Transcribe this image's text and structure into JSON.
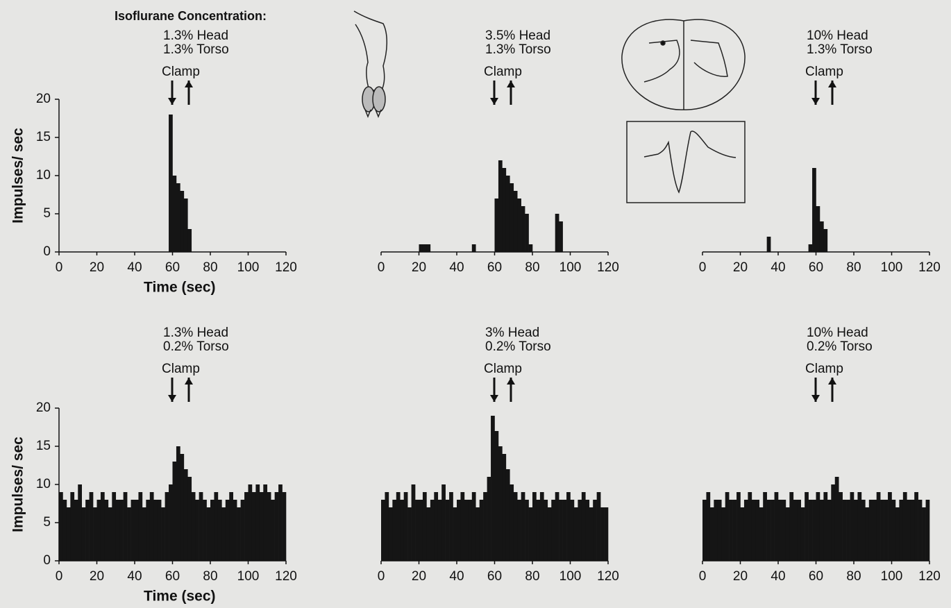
{
  "header": "Isoflurane Concentration:",
  "chart_data": [
    {
      "type": "histogram",
      "annotations": [
        "1.3% Head",
        "1.3% Torso",
        "Clamp"
      ],
      "ylabel": "Impulses/ sec",
      "xlabel": "Time (sec)",
      "color": "#151515",
      "bins": [
        0,
        2,
        4,
        6,
        8,
        10,
        12,
        14,
        16,
        18,
        20,
        22,
        24,
        26,
        28,
        30,
        32,
        34,
        36,
        38,
        40,
        42,
        44,
        46,
        48,
        50,
        52,
        54,
        56,
        58,
        60,
        62,
        64,
        66,
        68,
        70,
        72,
        74,
        76,
        78,
        80,
        82,
        84,
        86,
        88,
        90,
        92,
        94,
        96,
        98,
        100,
        102,
        104,
        106,
        108,
        110,
        112,
        114,
        116,
        118,
        120
      ],
      "values": [
        0,
        0,
        0,
        0,
        0,
        0,
        0,
        0,
        0,
        0,
        0,
        0,
        0,
        0,
        0,
        0,
        0,
        0,
        0,
        0,
        0,
        0,
        0,
        0,
        0,
        0,
        0,
        0,
        0,
        18,
        10,
        9,
        8,
        7,
        3,
        0,
        0,
        0,
        0,
        0,
        0,
        0,
        0,
        0,
        0,
        0,
        0,
        0,
        0,
        0,
        0,
        0,
        0,
        0,
        0,
        0,
        0,
        0,
        0,
        0
      ],
      "xlim": [
        0,
        120
      ],
      "xticks": [
        0,
        20,
        40,
        60,
        80,
        100,
        120
      ],
      "ylim": [
        0,
        20
      ],
      "yticks": [
        0,
        5,
        10,
        15,
        20
      ]
    },
    {
      "type": "histogram",
      "annotations": [
        "3.5% Head",
        "1.3% Torso",
        "Clamp"
      ],
      "color": "#151515",
      "bins": [
        0,
        2,
        4,
        6,
        8,
        10,
        12,
        14,
        16,
        18,
        20,
        22,
        24,
        26,
        28,
        30,
        32,
        34,
        36,
        38,
        40,
        42,
        44,
        46,
        48,
        50,
        52,
        54,
        56,
        58,
        60,
        62,
        64,
        66,
        68,
        70,
        72,
        74,
        76,
        78,
        80,
        82,
        84,
        86,
        88,
        90,
        92,
        94,
        96,
        98,
        100,
        102,
        104,
        106,
        108,
        110,
        112,
        114,
        116,
        118,
        120
      ],
      "values": [
        0,
        0,
        0,
        0,
        0,
        0,
        0,
        0,
        0,
        0,
        1,
        1,
        1,
        0,
        0,
        0,
        0,
        0,
        0,
        0,
        0,
        0,
        0,
        0,
        1,
        0,
        0,
        0,
        0,
        0,
        7,
        12,
        11,
        10,
        9,
        8,
        7,
        6,
        5,
        1,
        0,
        0,
        0,
        0,
        0,
        0,
        5,
        4,
        0,
        0,
        0,
        0,
        0,
        0,
        0,
        0,
        0,
        0,
        0,
        0
      ],
      "xlim": [
        0,
        120
      ],
      "xticks": [
        0,
        20,
        40,
        60,
        80,
        100,
        120
      ],
      "ylim": [
        0,
        20
      ]
    },
    {
      "type": "histogram",
      "annotations": [
        "10% Head",
        "1.3% Torso",
        "Clamp"
      ],
      "color": "#151515",
      "bins": [
        0,
        2,
        4,
        6,
        8,
        10,
        12,
        14,
        16,
        18,
        20,
        22,
        24,
        26,
        28,
        30,
        32,
        34,
        36,
        38,
        40,
        42,
        44,
        46,
        48,
        50,
        52,
        54,
        56,
        58,
        60,
        62,
        64,
        66,
        68,
        70,
        72,
        74,
        76,
        78,
        80,
        82,
        84,
        86,
        88,
        90,
        92,
        94,
        96,
        98,
        100,
        102,
        104,
        106,
        108,
        110,
        112,
        114,
        116,
        118,
        120
      ],
      "values": [
        0,
        0,
        0,
        0,
        0,
        0,
        0,
        0,
        0,
        0,
        0,
        0,
        0,
        0,
        0,
        0,
        0,
        2,
        0,
        0,
        0,
        0,
        0,
        0,
        0,
        0,
        0,
        0,
        1,
        11,
        6,
        4,
        3,
        0,
        0,
        0,
        0,
        0,
        0,
        0,
        0,
        0,
        0,
        0,
        0,
        0,
        0,
        0,
        0,
        0,
        0,
        0,
        0,
        0,
        0,
        0,
        0,
        0,
        0,
        0
      ],
      "xlim": [
        0,
        120
      ],
      "xticks": [
        0,
        20,
        40,
        60,
        80,
        100,
        120
      ],
      "ylim": [
        0,
        20
      ]
    },
    {
      "type": "histogram",
      "annotations": [
        "1.3% Head",
        "0.2% Torso",
        "Clamp"
      ],
      "ylabel": "Impulses/ sec",
      "xlabel": "Time (sec)",
      "color": "#151515",
      "bins": [
        0,
        2,
        4,
        6,
        8,
        10,
        12,
        14,
        16,
        18,
        20,
        22,
        24,
        26,
        28,
        30,
        32,
        34,
        36,
        38,
        40,
        42,
        44,
        46,
        48,
        50,
        52,
        54,
        56,
        58,
        60,
        62,
        64,
        66,
        68,
        70,
        72,
        74,
        76,
        78,
        80,
        82,
        84,
        86,
        88,
        90,
        92,
        94,
        96,
        98,
        100,
        102,
        104,
        106,
        108,
        110,
        112,
        114,
        116,
        118,
        120
      ],
      "values": [
        9,
        8,
        7,
        9,
        8,
        10,
        7,
        8,
        9,
        7,
        8,
        9,
        8,
        7,
        9,
        8,
        8,
        9,
        7,
        8,
        8,
        9,
        7,
        8,
        9,
        8,
        8,
        7,
        9,
        10,
        13,
        15,
        14,
        12,
        11,
        9,
        8,
        9,
        8,
        7,
        8,
        9,
        8,
        7,
        8,
        9,
        8,
        7,
        8,
        9,
        10,
        9,
        10,
        9,
        10,
        9,
        8,
        9,
        10,
        9
      ],
      "xlim": [
        0,
        120
      ],
      "xticks": [
        0,
        20,
        40,
        60,
        80,
        100,
        120
      ],
      "ylim": [
        0,
        20
      ],
      "yticks": [
        0,
        5,
        10,
        15,
        20
      ]
    },
    {
      "type": "histogram",
      "annotations": [
        "3% Head",
        "0.2% Torso",
        "Clamp"
      ],
      "color": "#151515",
      "bins": [
        0,
        2,
        4,
        6,
        8,
        10,
        12,
        14,
        16,
        18,
        20,
        22,
        24,
        26,
        28,
        30,
        32,
        34,
        36,
        38,
        40,
        42,
        44,
        46,
        48,
        50,
        52,
        54,
        56,
        58,
        60,
        62,
        64,
        66,
        68,
        70,
        72,
        74,
        76,
        78,
        80,
        82,
        84,
        86,
        88,
        90,
        92,
        94,
        96,
        98,
        100,
        102,
        104,
        106,
        108,
        110,
        112,
        114,
        116,
        118,
        120
      ],
      "values": [
        8,
        9,
        7,
        8,
        9,
        8,
        9,
        7,
        10,
        8,
        8,
        9,
        7,
        8,
        9,
        8,
        10,
        8,
        9,
        7,
        8,
        9,
        8,
        8,
        9,
        7,
        8,
        9,
        11,
        19,
        17,
        15,
        14,
        12,
        10,
        9,
        8,
        9,
        8,
        7,
        9,
        8,
        9,
        8,
        7,
        8,
        9,
        8,
        8,
        9,
        8,
        7,
        8,
        9,
        8,
        7,
        8,
        9,
        7,
        7
      ],
      "xlim": [
        0,
        120
      ],
      "xticks": [
        0,
        20,
        40,
        60,
        80,
        100,
        120
      ],
      "ylim": [
        0,
        20
      ]
    },
    {
      "type": "histogram",
      "annotations": [
        "10% Head",
        "0.2% Torso",
        "Clamp"
      ],
      "color": "#151515",
      "bins": [
        0,
        2,
        4,
        6,
        8,
        10,
        12,
        14,
        16,
        18,
        20,
        22,
        24,
        26,
        28,
        30,
        32,
        34,
        36,
        38,
        40,
        42,
        44,
        46,
        48,
        50,
        52,
        54,
        56,
        58,
        60,
        62,
        64,
        66,
        68,
        70,
        72,
        74,
        76,
        78,
        80,
        82,
        84,
        86,
        88,
        90,
        92,
        94,
        96,
        98,
        100,
        102,
        104,
        106,
        108,
        110,
        112,
        114,
        116,
        118,
        120
      ],
      "values": [
        8,
        9,
        7,
        8,
        8,
        7,
        9,
        8,
        8,
        9,
        7,
        8,
        9,
        8,
        8,
        7,
        9,
        8,
        8,
        9,
        8,
        8,
        7,
        9,
        8,
        8,
        7,
        9,
        8,
        8,
        9,
        8,
        9,
        8,
        10,
        11,
        9,
        8,
        8,
        9,
        8,
        9,
        8,
        7,
        8,
        8,
        9,
        8,
        8,
        9,
        8,
        7,
        8,
        9,
        8,
        8,
        9,
        8,
        7,
        8
      ],
      "xlim": [
        0,
        120
      ],
      "xticks": [
        0,
        20,
        40,
        60,
        80,
        100,
        120
      ],
      "ylim": [
        0,
        20
      ]
    }
  ]
}
